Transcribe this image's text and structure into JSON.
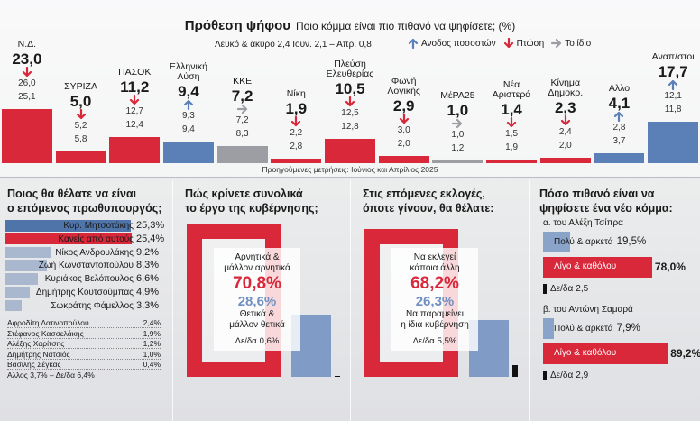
{
  "chart_data": [
    {
      "type": "bar",
      "title": "Πρόθεση ψήφου",
      "subtitle": "Ποιο κόμμα είναι πιο πιθανό να ψηφίσετε; (%)",
      "note": "Λευκό & άκυρο 2,4 Ιουν. 2,1 – Απρ. 0,8",
      "footnote": "Προηγούμενες μετρήσεις: Ιούνιος και Απρίλιος 2025",
      "legend": [
        {
          "name": "Ανοδος ποσοστών",
          "color": "#5b80b8"
        },
        {
          "name": "Πτώση",
          "color": "#d8283a"
        },
        {
          "name": "Το ίδιο",
          "color": "#9c9ea3"
        }
      ],
      "categories": [
        "Ν.Δ.",
        "ΣΥΡΙΖΑ",
        "ΠΑΣΟΚ",
        "Ελληνική\nΛύση",
        "ΚΚΕ",
        "Νίκη",
        "Πλεύση\nΕλευθερίας",
        "Φωνή\nΛογικής",
        "ΜέΡΑ25",
        "Νέα\nΑριστερά",
        "Κίνημα\nΔημοκρ.",
        "Αλλο",
        "Αναπ/στοι"
      ],
      "colors": [
        "#d8283a",
        "#d8283a",
        "#d8283a",
        "#5b80b8",
        "#9c9ea3",
        "#d8283a",
        "#d8283a",
        "#d8283a",
        "#9c9ea3",
        "#d8283a",
        "#d8283a",
        "#5b80b8",
        "#5b80b8"
      ],
      "series": [
        {
          "values": [
            23.0,
            5.0,
            11.2,
            9.4,
            7.2,
            1.9,
            10.5,
            2.9,
            1.0,
            1.4,
            2.3,
            4.1,
            17.7
          ],
          "value_labels": [
            "23,0",
            "5,0",
            "11,2",
            "9,4",
            "7,2",
            "1,9",
            "10,5",
            "2,9",
            "1,0",
            "1,4",
            "2,3",
            "4,1",
            "17,7"
          ]
        },
        {
          "values": [
            26.0,
            5.2,
            12.7,
            9.3,
            7.2,
            2.2,
            12.5,
            3.0,
            1.0,
            1.5,
            2.4,
            2.8,
            12.1
          ],
          "value_labels": [
            "26,0",
            "5,2",
            "12,7",
            "9,3",
            "7,2",
            "2,2",
            "12,5",
            "3,0",
            "1,0",
            "1,5",
            "2,4",
            "2,8",
            "12,1"
          ]
        },
        {
          "values": [
            25.1,
            5.8,
            12.4,
            9.4,
            8.3,
            2.8,
            12.8,
            2.0,
            1.2,
            1.9,
            2.0,
            3.7,
            11.8
          ],
          "value_labels": [
            "25,1",
            "5,8",
            "12,4",
            "9,4",
            "8,3",
            "2,8",
            "12,8",
            "2,0",
            "1,2",
            "1,9",
            "2,0",
            "3,7",
            "11,8"
          ]
        }
      ]
    },
    {
      "type": "barh",
      "title": "Ποιος θα θέλατε να είναι\nο επόμενος πρωθυπουργός;",
      "categories": [
        "Κυρ. Μητσοτάκης",
        "Κανείς από αυτούς",
        "Νίκος Ανδρουλάκης",
        "Ζωή Κωνσταντοπούλου",
        "Κυριάκος Βελόπουλος",
        "Δημήτρης Κουτσούμπας",
        "Σωκράτης Φάμελλος"
      ],
      "values": [
        25.3,
        25.4,
        9.2,
        8.3,
        6.6,
        4.9,
        3.3
      ],
      "value_labels": [
        "25,3%",
        "25,4%",
        "9,2%",
        "8,3%",
        "6,6%",
        "4,9%",
        "3,3%"
      ],
      "colors": [
        "#4f74aa",
        "#d8283a",
        "#a9b8ce",
        "#a9b8ce",
        "#a9b8ce",
        "#a9b8ce",
        "#a9b8ce"
      ],
      "others": [
        {
          "name": "Αφροδίτη Λατινοπούλου",
          "value": "2,4%"
        },
        {
          "name": "Στέφανος Κασσελάκης",
          "value": "1,9%"
        },
        {
          "name": "Αλέξης Χαρίτσης",
          "value": "1,2%"
        },
        {
          "name": "Δημήτρης Νατσιός",
          "value": "1,0%"
        },
        {
          "name": "Βασίλης Σέγκας",
          "value": "0,4%"
        }
      ],
      "others_note": "Αλλος 3,7% – Δε/δα 6,4%"
    },
    {
      "type": "frame",
      "title": "Πώς κρίνετε συνολικά\nτο έργο της κυβέρνησης;",
      "categories": [
        "Αρνητικά &\nμάλλον αρνητικά",
        "Θετικά &\nμάλλον θετικά",
        "Δε/δα"
      ],
      "values": [
        70.8,
        28.6,
        0.6
      ],
      "value_labels": [
        "70,8%",
        "28,6%",
        "0,6%"
      ],
      "colors": [
        "#d8283a",
        "#6f8fc0",
        "#111111"
      ]
    },
    {
      "type": "frame",
      "title": "Στις επόμενες εκλογές,\nόποτε γίνουν, θα θέλατε:",
      "categories": [
        "Να εκλεγεί\nκάποια άλλη",
        "Να παραμείνει\nη ίδια κυβέρνηση",
        "Δε/δα"
      ],
      "values": [
        68.2,
        26.3,
        5.5
      ],
      "value_labels": [
        "68,2%",
        "26,3%",
        "5,5%"
      ],
      "colors": [
        "#d8283a",
        "#6f8fc0",
        "#111111"
      ]
    },
    {
      "type": "barh",
      "title": "Πόσο πιθανό είναι να\nψηφίσετε ένα νέο κόμμα:",
      "colors": [
        "#8aa3c8",
        "#d8283a",
        "#111111"
      ],
      "groups": [
        {
          "title": "α. του Αλέξη Τσίπρα",
          "categories": [
            "Πολύ & αρκετά",
            "Λίγο & καθόλου",
            "Δε/δα"
          ],
          "values": [
            19.5,
            78.0,
            2.5
          ],
          "value_labels": [
            "19,5%",
            "78,0%",
            "2,5"
          ]
        },
        {
          "title": "β. του Αντώνη Σαμαρά",
          "categories": [
            "Πολύ & αρκετά",
            "Λίγο & καθόλου",
            "Δε/δα"
          ],
          "values": [
            7.9,
            89.2,
            2.9
          ],
          "value_labels": [
            "7,9%",
            "89,2%",
            "2,9"
          ]
        }
      ]
    }
  ]
}
